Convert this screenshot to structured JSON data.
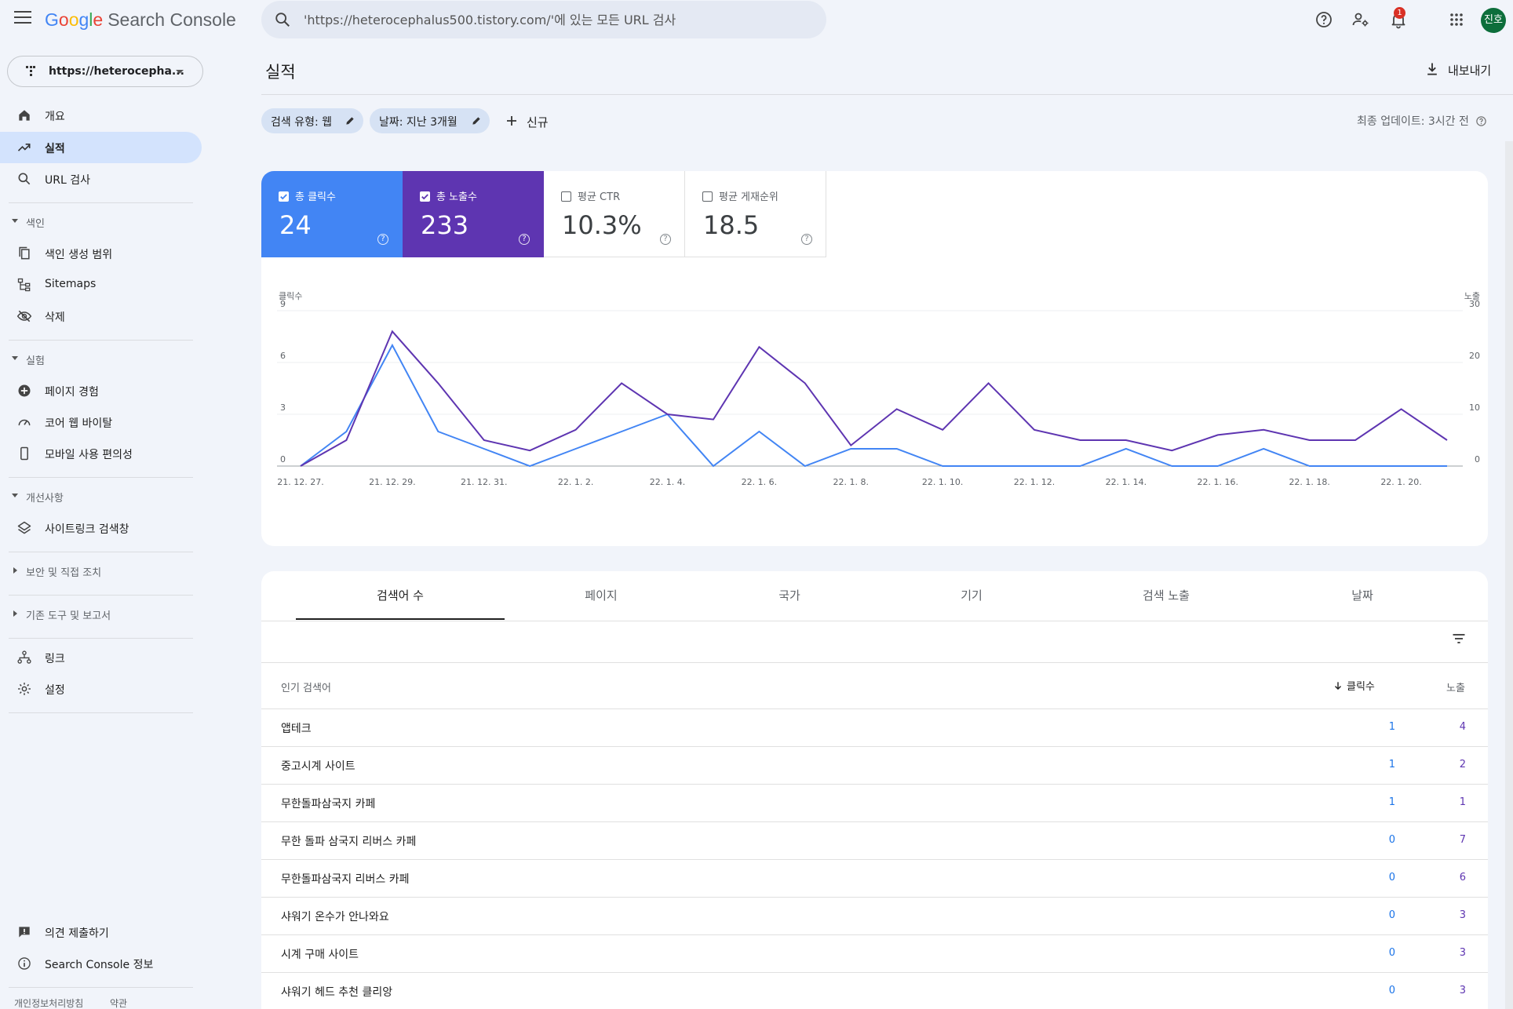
{
  "app": {
    "logo_letters": [
      "G",
      "o",
      "o",
      "g",
      "l",
      "e"
    ],
    "product": "Search Console",
    "avatar_text": "진호",
    "notification_count": "1",
    "icons": [
      "menu-icon",
      "search-icon",
      "help-icon",
      "manage-account-icon",
      "notification-bell-icon",
      "apps-grid-icon"
    ],
    "colors": {
      "clicks": "#4285f4",
      "impressions": "#5e35b1",
      "active_nav": "#d3e3fd",
      "background": "#f1f4fa"
    }
  },
  "search": {
    "placeholder": "'https://heterocephalus500.tistory.com/'에 있는 모든 URL 검사"
  },
  "property": {
    "label": "https://heterocepha..."
  },
  "sidebar": {
    "overview": "개요",
    "performance": "실적",
    "url_inspection": "URL 검사",
    "index_section": "색인",
    "coverage": "색인 생성 범위",
    "sitemaps": "Sitemaps",
    "removals": "삭제",
    "experience_section": "실험",
    "page_experience": "페이지 경험",
    "core_web_vitals": "코어 웹 바이탈",
    "mobile_usability": "모바일 사용 편의성",
    "enhancements_section": "개선사항",
    "sitelinks_searchbox": "사이트링크 검색창",
    "security_section": "보안 및 직접 조치",
    "legacy_section": "기존 도구 및 보고서",
    "links": "링크",
    "settings": "설정",
    "feedback": "의견 제출하기",
    "about": "Search Console 정보",
    "privacy": "개인정보처리방침",
    "terms": "약관"
  },
  "header": {
    "title": "실적",
    "export": "내보내기",
    "filter_search_type": "검색 유형: 웹",
    "filter_date": "날짜: 지난 3개월",
    "new_filter": "신규",
    "last_update": "최종 업데이트: 3시간 전"
  },
  "metrics": {
    "clicks": {
      "label": "총 클릭수",
      "value": "24",
      "checked": true
    },
    "impressions": {
      "label": "총 노출수",
      "value": "233",
      "checked": true
    },
    "ctr": {
      "label": "평균 CTR",
      "value": "10.3%",
      "checked": false
    },
    "position": {
      "label": "평균 게재순위",
      "value": "18.5",
      "checked": false
    }
  },
  "chart_data": {
    "type": "line",
    "left_axis_label": "클릭수",
    "right_axis_label": "노출",
    "left_ylim": [
      0,
      9
    ],
    "right_ylim": [
      0,
      30
    ],
    "left_ticks": [
      "0",
      "3",
      "6",
      "9"
    ],
    "right_ticks": [
      "0",
      "10",
      "20",
      "30"
    ],
    "x_tick_labels": [
      "21. 12. 27.",
      "21. 12. 29.",
      "21. 12. 31.",
      "22. 1. 2.",
      "22. 1. 4.",
      "22. 1. 6.",
      "22. 1. 8.",
      "22. 1. 10.",
      "22. 1. 12.",
      "22. 1. 14.",
      "22. 1. 16.",
      "22. 1. 18.",
      "22. 1. 20."
    ],
    "x": [
      "21. 12. 27.",
      "21. 12. 28.",
      "21. 12. 29.",
      "21. 12. 30.",
      "21. 12. 31.",
      "22. 1. 1.",
      "22. 1. 2.",
      "22. 1. 3.",
      "22. 1. 4.",
      "22. 1. 5.",
      "22. 1. 6.",
      "22. 1. 7.",
      "22. 1. 8.",
      "22. 1. 9.",
      "22. 1. 10.",
      "22. 1. 11.",
      "22. 1. 12.",
      "22. 1. 13.",
      "22. 1. 14.",
      "22. 1. 15.",
      "22. 1. 16.",
      "22. 1. 17.",
      "22. 1. 18.",
      "22. 1. 19.",
      "22. 1. 20.",
      "22. 1. 21."
    ],
    "series": [
      {
        "name": "클릭수",
        "axis": "left",
        "color": "#4285f4",
        "values": [
          0,
          2,
          7,
          2,
          1,
          0,
          1,
          2,
          3,
          0,
          2,
          0,
          1,
          1,
          0,
          0,
          0,
          0,
          1,
          0,
          0,
          1,
          0,
          0,
          0,
          0
        ]
      },
      {
        "name": "노출",
        "axis": "right",
        "color": "#5e35b1",
        "values": [
          0,
          5,
          26,
          16,
          5,
          3,
          7,
          16,
          10,
          9,
          23,
          16,
          4,
          11,
          7,
          16,
          7,
          5,
          5,
          3,
          6,
          7,
          5,
          5,
          11,
          5
        ]
      }
    ],
    "grid": true
  },
  "tabs": [
    "검색어 수",
    "페이지",
    "국가",
    "기기",
    "검색 노출",
    "날짜"
  ],
  "table": {
    "col_query": "인기 검색어",
    "col_clicks": "클릭수",
    "col_impressions": "노출",
    "rows": [
      {
        "query": "앱테크",
        "clicks": "1",
        "impressions": "4"
      },
      {
        "query": "중고시계 사이트",
        "clicks": "1",
        "impressions": "2"
      },
      {
        "query": "무한돌파삼국지 카페",
        "clicks": "1",
        "impressions": "1"
      },
      {
        "query": "무한 돌파 삼국지 리버스 카페",
        "clicks": "0",
        "impressions": "7"
      },
      {
        "query": "무한돌파삼국지 리버스 카페",
        "clicks": "0",
        "impressions": "6"
      },
      {
        "query": "샤워기 온수가 안나와요",
        "clicks": "0",
        "impressions": "3"
      },
      {
        "query": "시계 구매 사이트",
        "clicks": "0",
        "impressions": "3"
      },
      {
        "query": "샤워기 헤드 추천 클리앙",
        "clicks": "0",
        "impressions": "3"
      }
    ]
  }
}
